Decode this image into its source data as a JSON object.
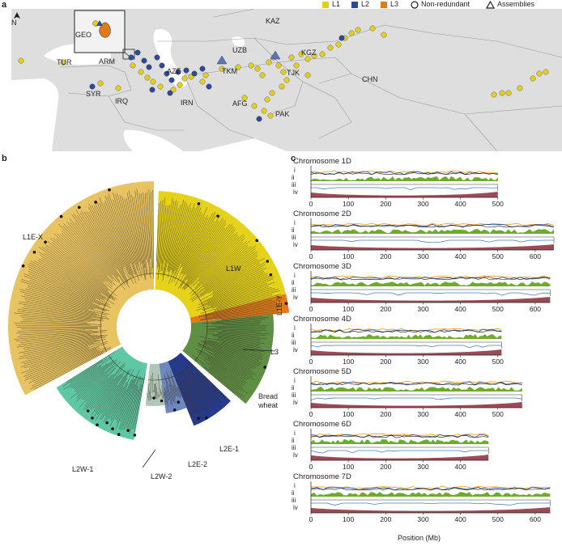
{
  "panels": {
    "a": "a",
    "b": "b",
    "c": "c"
  },
  "legend": {
    "l1": "L1",
    "l2": "L2",
    "l3": "L3",
    "nonredundant": "Non-redundant",
    "assemblies": "Assemblies",
    "colors": {
      "l1": "#e3cf1b",
      "l2": "#2d4a9a",
      "l3": "#e07b1a"
    }
  },
  "map": {
    "north": "N",
    "countries": [
      "KAZ",
      "GEO",
      "TUR",
      "ARM",
      "UZB",
      "KGZ",
      "AZE",
      "TKM",
      "TJK",
      "SYR",
      "IRQ",
      "IRN",
      "AFG",
      "CHN",
      "PAK"
    ]
  },
  "tree": {
    "clades": {
      "l1ex": "L1E-X",
      "l1w": "L1W",
      "l1ey": "L1E-Y",
      "l3": "L3",
      "bread": "Bread\nwheat",
      "l2e1": "L2E-1",
      "l2e2": "L2E-2",
      "l2w1": "L2W-1",
      "l2w2": "L2W-2"
    },
    "colors": {
      "l1ex": "#e8c362",
      "l1w": "#e6d21a",
      "l3": "#e07b1a",
      "bread": "#5e8f44",
      "l2e1": "#263a8c",
      "l2e2": "#6d87bf",
      "l2w2": "#b2c6b8",
      "l2w1": "#5ec7a3"
    }
  },
  "chromosomes": {
    "rows": [
      "i",
      "ii",
      "iii",
      "iv"
    ],
    "xlabel": "Position (Mb)",
    "items": [
      {
        "name": "Chromosome 1D",
        "length": 500,
        "ticks": [
          0,
          100,
          200,
          300,
          400,
          500
        ]
      },
      {
        "name": "Chromosome 2D",
        "length": 650,
        "ticks": [
          0,
          100,
          200,
          300,
          400,
          500,
          600
        ]
      },
      {
        "name": "Chromosome 3D",
        "length": 640,
        "ticks": [
          0,
          100,
          200,
          300,
          400,
          500,
          600
        ]
      },
      {
        "name": "Chromosome 4D",
        "length": 510,
        "ticks": [
          0,
          100,
          200,
          300,
          400,
          500
        ]
      },
      {
        "name": "Chromosome 5D",
        "length": 565,
        "ticks": [
          0,
          100,
          200,
          300,
          400,
          500
        ]
      },
      {
        "name": "Chromosome 6D",
        "length": 475,
        "ticks": [
          0,
          100,
          200,
          300,
          400
        ]
      },
      {
        "name": "Chromosome 7D",
        "length": 640,
        "ticks": [
          0,
          100,
          200,
          300,
          400,
          500,
          600
        ]
      }
    ]
  }
}
